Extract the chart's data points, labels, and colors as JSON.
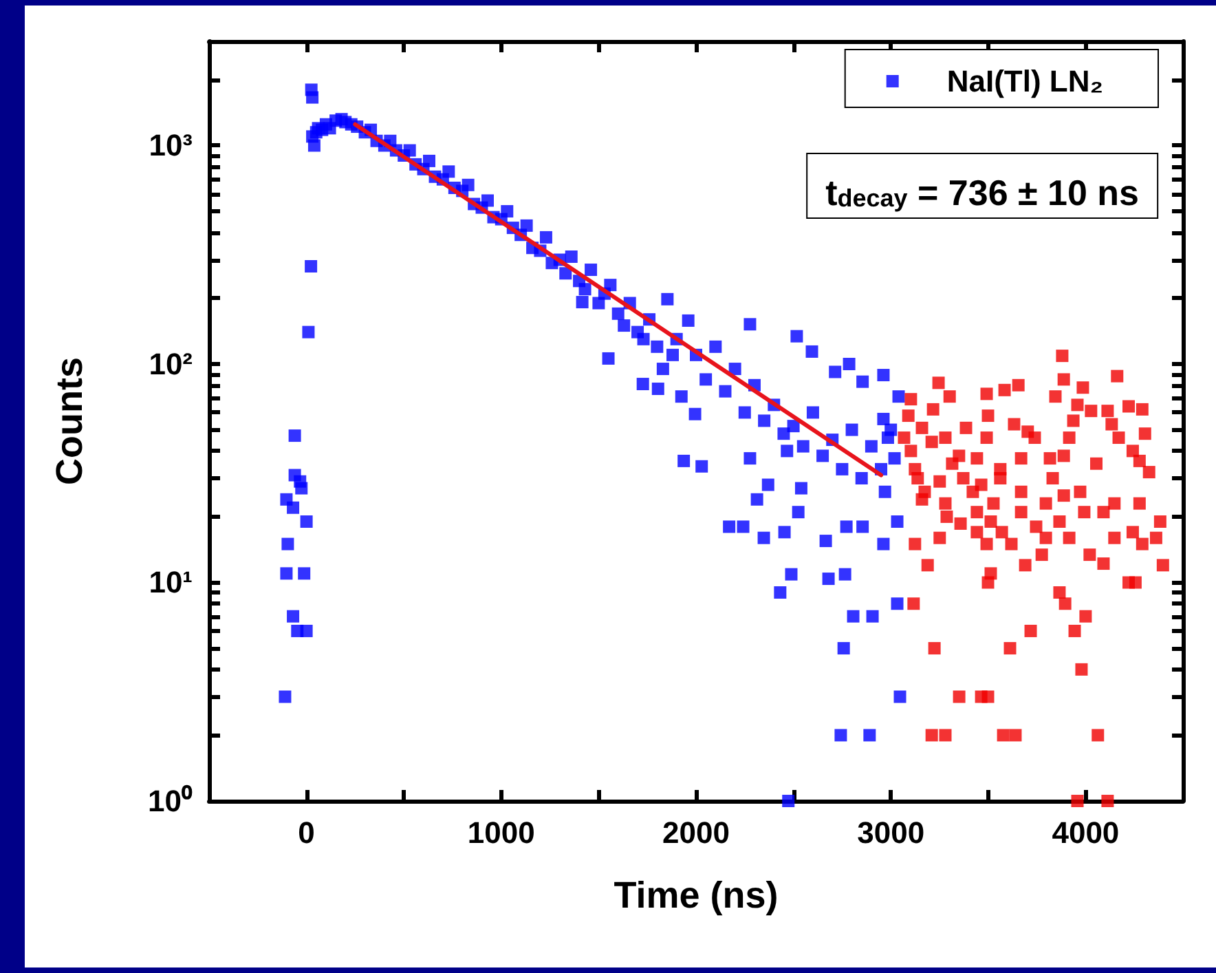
{
  "chart_data": {
    "type": "scatter",
    "xlabel": "Time (ns)",
    "ylabel": "Counts",
    "xlim": [
      -500,
      4500
    ],
    "xticks": [
      0,
      {
        "value": 500,
        "label": null
      },
      1000,
      {
        "value": 1500,
        "label": null
      },
      2000,
      {
        "value": 2500,
        "label": null
      },
      3000,
      {
        "value": 3500,
        "label": null
      },
      4000
    ],
    "ylim": [
      1,
      3000
    ],
    "log": "y",
    "yticks": [
      {
        "value": 1,
        "label": "10⁰"
      },
      {
        "value": 2,
        "label": null
      },
      {
        "value": 3,
        "label": null
      },
      {
        "value": 4,
        "label": null
      },
      {
        "value": 5,
        "label": null
      },
      {
        "value": 6,
        "label": null
      },
      {
        "value": 7,
        "label": null
      },
      {
        "value": 8,
        "label": null
      },
      {
        "value": 9,
        "label": null
      },
      {
        "value": 10,
        "label": "10¹"
      },
      {
        "value": 20,
        "label": null
      },
      {
        "value": 30,
        "label": null
      },
      {
        "value": 40,
        "label": null
      },
      {
        "value": 50,
        "label": null
      },
      {
        "value": 60,
        "label": null
      },
      {
        "value": 70,
        "label": null
      },
      {
        "value": 80,
        "label": null
      },
      {
        "value": 90,
        "label": null
      },
      {
        "value": 100,
        "label": "10²"
      },
      {
        "value": 200,
        "label": null
      },
      {
        "value": 300,
        "label": null
      },
      {
        "value": 400,
        "label": null
      },
      {
        "value": 500,
        "label": null
      },
      {
        "value": 600,
        "label": null
      },
      {
        "value": 700,
        "label": null
      },
      {
        "value": 800,
        "label": null
      },
      {
        "value": 900,
        "label": null
      },
      {
        "value": 1000,
        "label": "10³"
      },
      {
        "value": 2000,
        "label": null
      },
      {
        "value": 3000,
        "label": null
      }
    ],
    "grid": false,
    "legend": "top right",
    "marker": "square",
    "annotations": [
      "t$_{decay}$ = 736 ± 10 ns"
    ],
    "series": [
      {
        "name": "NaI(Tl) LN₂",
        "color": "#0000ff",
        "x": [
          -60,
          -60,
          -33,
          -26,
          -103,
          -69,
          0,
          -96,
          -103,
          -12,
          -69,
          -47,
          0,
          -110,
          23,
          10,
          30,
          25,
          30,
          40,
          50,
          60,
          80,
          100,
          120,
          150,
          180,
          200,
          230,
          260,
          300,
          330,
          360,
          400,
          430,
          460,
          500,
          530,
          560,
          600,
          630,
          660,
          700,
          730,
          760,
          800,
          830,
          860,
          900,
          930,
          960,
          1000,
          1030,
          1060,
          1100,
          1130,
          1160,
          1200,
          1230,
          1260,
          1300,
          1330,
          1360,
          1400,
          1430,
          1460,
          1500,
          1530,
          1560,
          1600,
          1630,
          1660,
          1700,
          1730,
          1760,
          1800,
          1830,
          1880,
          1900,
          2000,
          2050,
          2100,
          2150,
          2200,
          2250,
          2300,
          2350,
          2400,
          2450,
          2500,
          2550,
          2600,
          2650,
          2700,
          2750,
          2800,
          2850,
          2900,
          2950,
          3000,
          1416,
          1550,
          1727,
          1805,
          1925,
          1995,
          1853,
          1960,
          2277,
          2517,
          2595,
          2786,
          2962,
          2714,
          2855,
          3040,
          1937,
          2029,
          2277,
          2467,
          2313,
          2370,
          2540,
          2525,
          2170,
          2242,
          2348,
          2454,
          2666,
          2772,
          2855,
          2962,
          3033,
          2489,
          2432,
          2680,
          2765,
          3033,
          2807,
          2906,
          2758,
          3047,
          2743,
          2891,
          2474,
          2962,
          2985,
          2970,
          3019
        ],
        "values": [
          47,
          31,
          29,
          27,
          24,
          22,
          19,
          15,
          11,
          11,
          7,
          6,
          6,
          3,
          280,
          140,
          1660,
          1800,
          1100,
          1000,
          1150,
          1200,
          1180,
          1250,
          1200,
          1300,
          1320,
          1280,
          1250,
          1220,
          1150,
          1180,
          1050,
          1000,
          1050,
          950,
          900,
          950,
          820,
          780,
          850,
          720,
          700,
          760,
          640,
          620,
          660,
          540,
          520,
          560,
          470,
          460,
          500,
          420,
          390,
          430,
          340,
          330,
          380,
          290,
          300,
          260,
          310,
          240,
          220,
          270,
          190,
          210,
          230,
          170,
          150,
          190,
          140,
          130,
          160,
          120,
          95,
          110,
          130,
          110,
          85,
          120,
          75,
          95,
          60,
          80,
          55,
          65,
          48,
          52,
          42,
          60,
          38,
          45,
          33,
          50,
          30,
          42,
          33,
          50,
          192,
          106,
          81,
          77,
          71,
          59,
          198,
          158,
          152,
          134,
          114,
          100,
          89,
          92,
          83,
          71,
          36,
          34,
          37,
          40,
          24,
          28,
          27,
          21,
          18,
          18,
          16,
          17,
          15.5,
          18,
          18,
          15,
          19,
          10.9,
          9,
          10.4,
          10.9,
          8,
          7,
          7,
          5,
          3,
          2,
          2,
          1,
          56,
          46,
          26,
          37
        ]
      },
      {
        "color": "#f00000",
        "x": [
          3880,
          4162,
          3888,
          3245,
          3302,
          3492,
          3584,
          3655,
          3986,
          3845,
          3103,
          4221,
          4291,
          3217,
          3090,
          3499,
          3958,
          4028,
          4113,
          3386,
          3160,
          3633,
          3703,
          3937,
          4134,
          4305,
          3068,
          3210,
          3280,
          3492,
          3739,
          3916,
          4170,
          3103,
          3350,
          3442,
          3817,
          3888,
          3669,
          4242,
          4055,
          4277,
          3124,
          3315,
          3562,
          4326,
          3138,
          3251,
          3372,
          3464,
          3562,
          3831,
          3174,
          3421,
          3669,
          3888,
          3972,
          3160,
          3280,
          3527,
          3796,
          3993,
          4148,
          4277,
          3287,
          3442,
          3669,
          3866,
          4092,
          3358,
          3513,
          3746,
          4383,
          3251,
          3442,
          3570,
          3619,
          3796,
          3916,
          4148,
          4242,
          4362,
          3124,
          3492,
          4291,
          4021,
          4092,
          3775,
          3690,
          3189,
          4397,
          3513,
          4221,
          4256,
          3499,
          3866,
          3895,
          3117,
          4000,
          3718,
          3944,
          3224,
          3612,
          3979,
          3351,
          3464,
          3499,
          3210,
          3280,
          3577,
          3640,
          4063,
          3958,
          4113
        ],
        "values": [
          109,
          88,
          85,
          82,
          71,
          73,
          76,
          80,
          78,
          71,
          69,
          64,
          62,
          62,
          58,
          58,
          65,
          61,
          61,
          51,
          51,
          53,
          49,
          55,
          53,
          48,
          46,
          44,
          46,
          46,
          46,
          46,
          46,
          40,
          38,
          37,
          37,
          38,
          37,
          40,
          35,
          36,
          33,
          35,
          33,
          32,
          30,
          29,
          30,
          28,
          30,
          30,
          26,
          26,
          26,
          25,
          26,
          24,
          23,
          23,
          23,
          21,
          23,
          23,
          20,
          21,
          21,
          19,
          21,
          18.6,
          19,
          18,
          19,
          16,
          17,
          17,
          15,
          16,
          16,
          16,
          17,
          16,
          15,
          15,
          15,
          13.4,
          12.2,
          13.4,
          12,
          12,
          12,
          11,
          10,
          10,
          10,
          9,
          8,
          8,
          7,
          6,
          6,
          5,
          5,
          4,
          3,
          3,
          3,
          2,
          2,
          2,
          2,
          2,
          1,
          1
        ]
      },
      {
        "type": "line",
        "color": "#e8141c",
        "marker": "none",
        "line_style": "solid",
        "x": [
          250,
          2950
        ],
        "values": [
          1250,
          31
        ]
      }
    ]
  }
}
